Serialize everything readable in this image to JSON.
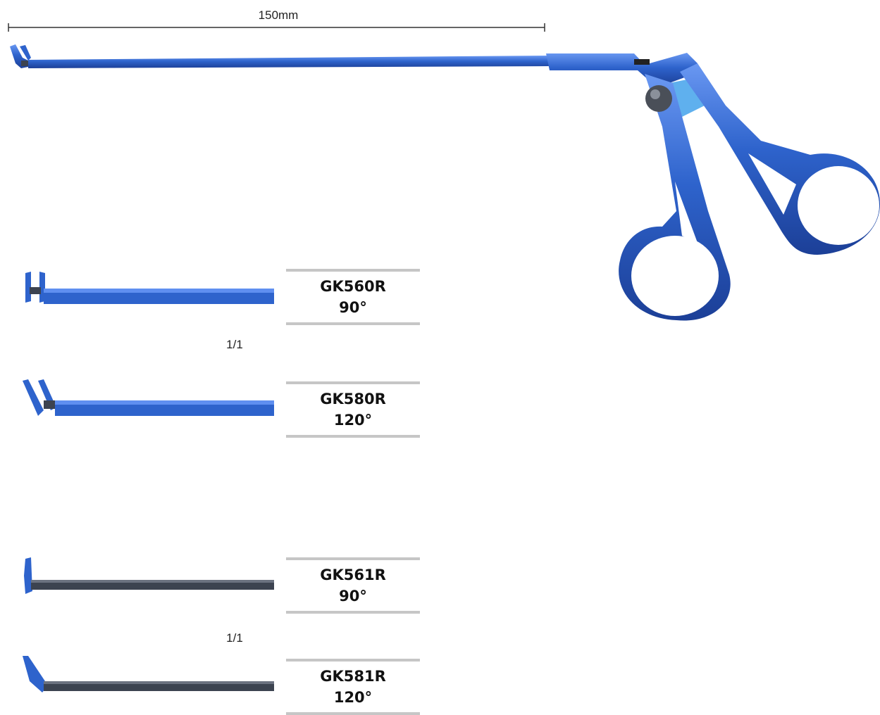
{
  "scale_bar": {
    "label": "150mm"
  },
  "products": [
    {
      "code": "GK560R",
      "angle": "90°"
    },
    {
      "code": "GK580R",
      "angle": "120°"
    },
    {
      "code": "GK561R",
      "angle": "90°"
    },
    {
      "code": "GK581R",
      "angle": "120°"
    }
  ],
  "scale_ratios": [
    "1/1",
    "1/1"
  ],
  "colors": {
    "instrument_blue": "#2e63cc",
    "instrument_blue_dark": "#1c3f97",
    "instrument_blue_light": "#5f8ff0",
    "shaft_dark": "#3c4350",
    "rule_gray": "#c6c6c6"
  }
}
